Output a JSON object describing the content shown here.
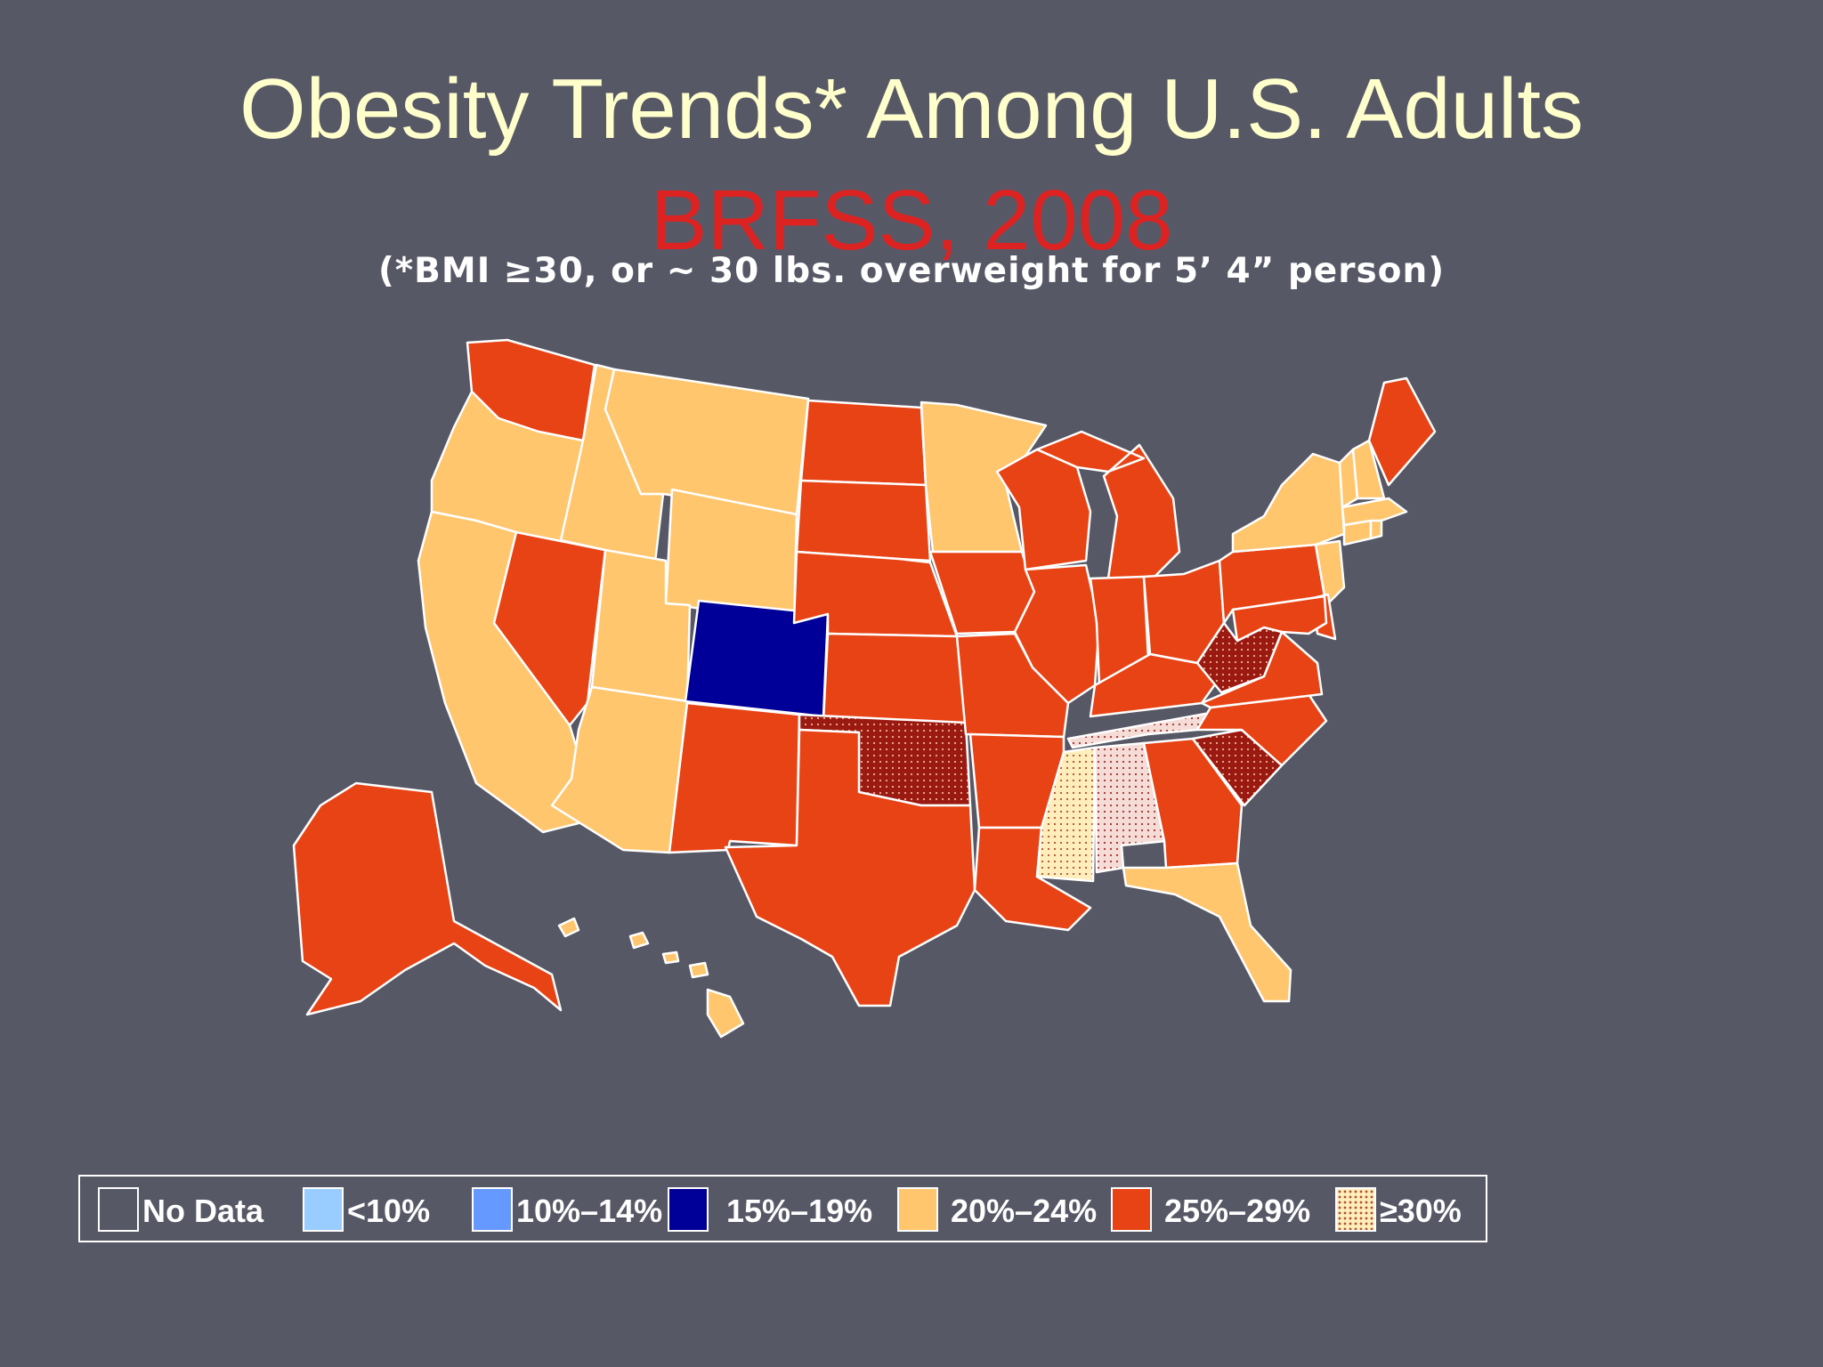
{
  "title": "Obesity Trends* Among U.S. Adults",
  "subtitle": "BRFSS, 2008",
  "footnote": "(*BMI ≥30, or ~ 30 lbs. overweight for 5’ 4” person)",
  "legend": [
    {
      "label": "No Data",
      "color": "#575866"
    },
    {
      "label": "<10%",
      "color": "#99ccff"
    },
    {
      "label": "10%–14%",
      "color": "#6699ff"
    },
    {
      "label": "15%–19%",
      "color": "#000099"
    },
    {
      "label": "20%–24%",
      "color": "#ffc66e"
    },
    {
      "label": "25%–29%",
      "color": "#e84315"
    },
    {
      "label": "≥30%",
      "color": "#ffeebb",
      "pattern": "dots"
    }
  ],
  "category_colors": {
    "c15": "#000099",
    "c20": "#ffc66e",
    "c25": "#e84315",
    "c30": "#9a1a12"
  },
  "states": {
    "WA": "c25",
    "OR": "c20",
    "CA": "c20",
    "NV": "c25",
    "ID": "c20",
    "MT": "c20",
    "WY": "c20",
    "UT": "c20",
    "AZ": "c20",
    "CO": "c15",
    "NM": "c25",
    "ND": "c25",
    "SD": "c25",
    "NE": "c25",
    "KS": "c25",
    "OK": "c30",
    "TX": "c25",
    "MN": "c20",
    "IA": "c25",
    "MO": "c25",
    "AR": "c25",
    "LA": "c25",
    "WI": "c25",
    "IL": "c25",
    "MI": "c25",
    "IN": "c25",
    "OH": "c25",
    "KY": "c25",
    "TN": "c30",
    "MS": "c30",
    "AL": "c30",
    "GA": "c25",
    "FL": "c20",
    "SC": "c30",
    "NC": "c25",
    "VA": "c25",
    "WV": "c30",
    "PA": "c25",
    "NY": "c20",
    "ME": "c25",
    "VT": "c20",
    "NH": "c20",
    "MA": "c20",
    "CT": "c20",
    "RI": "c20",
    "NJ": "c20",
    "DE": "c25",
    "MD": "c25",
    "AK": "c25",
    "HI": "c20"
  }
}
